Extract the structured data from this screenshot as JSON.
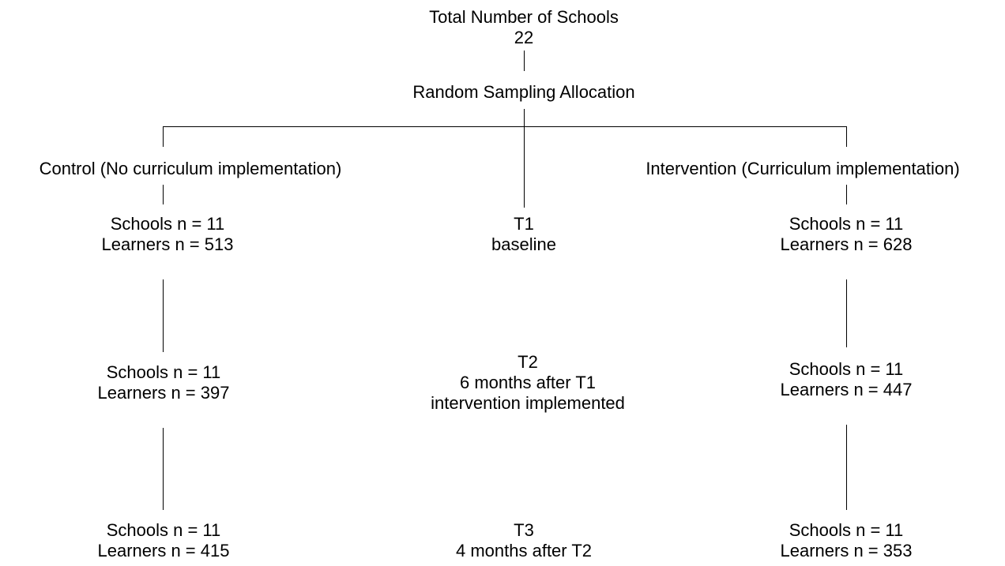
{
  "top": {
    "title": "Total Number of Schools",
    "count": "22"
  },
  "allocation": "Random Sampling Allocation",
  "control": {
    "header": "Control (No curriculum implementation)",
    "stages": [
      {
        "schools": "Schools n = 11",
        "learners": "Learners n = 513"
      },
      {
        "schools": "Schools n = 11",
        "learners": "Learners n = 397"
      },
      {
        "schools": "Schools n = 11",
        "learners": "Learners n = 415"
      }
    ]
  },
  "intervention": {
    "header": "Intervention (Curriculum implementation)",
    "stages": [
      {
        "schools": "Schools n = 11",
        "learners": "Learners n = 628"
      },
      {
        "schools": "Schools n = 11",
        "learners": "Learners n = 447"
      },
      {
        "schools": "Schools n = 11",
        "learners": "Learners n = 353"
      }
    ]
  },
  "timepoints": [
    {
      "label": "T1",
      "lines": [
        "baseline"
      ]
    },
    {
      "label": "T2",
      "lines": [
        "6 months after T1",
        "intervention implemented"
      ]
    },
    {
      "label": "T3",
      "lines": [
        "4 months after T2"
      ]
    }
  ]
}
